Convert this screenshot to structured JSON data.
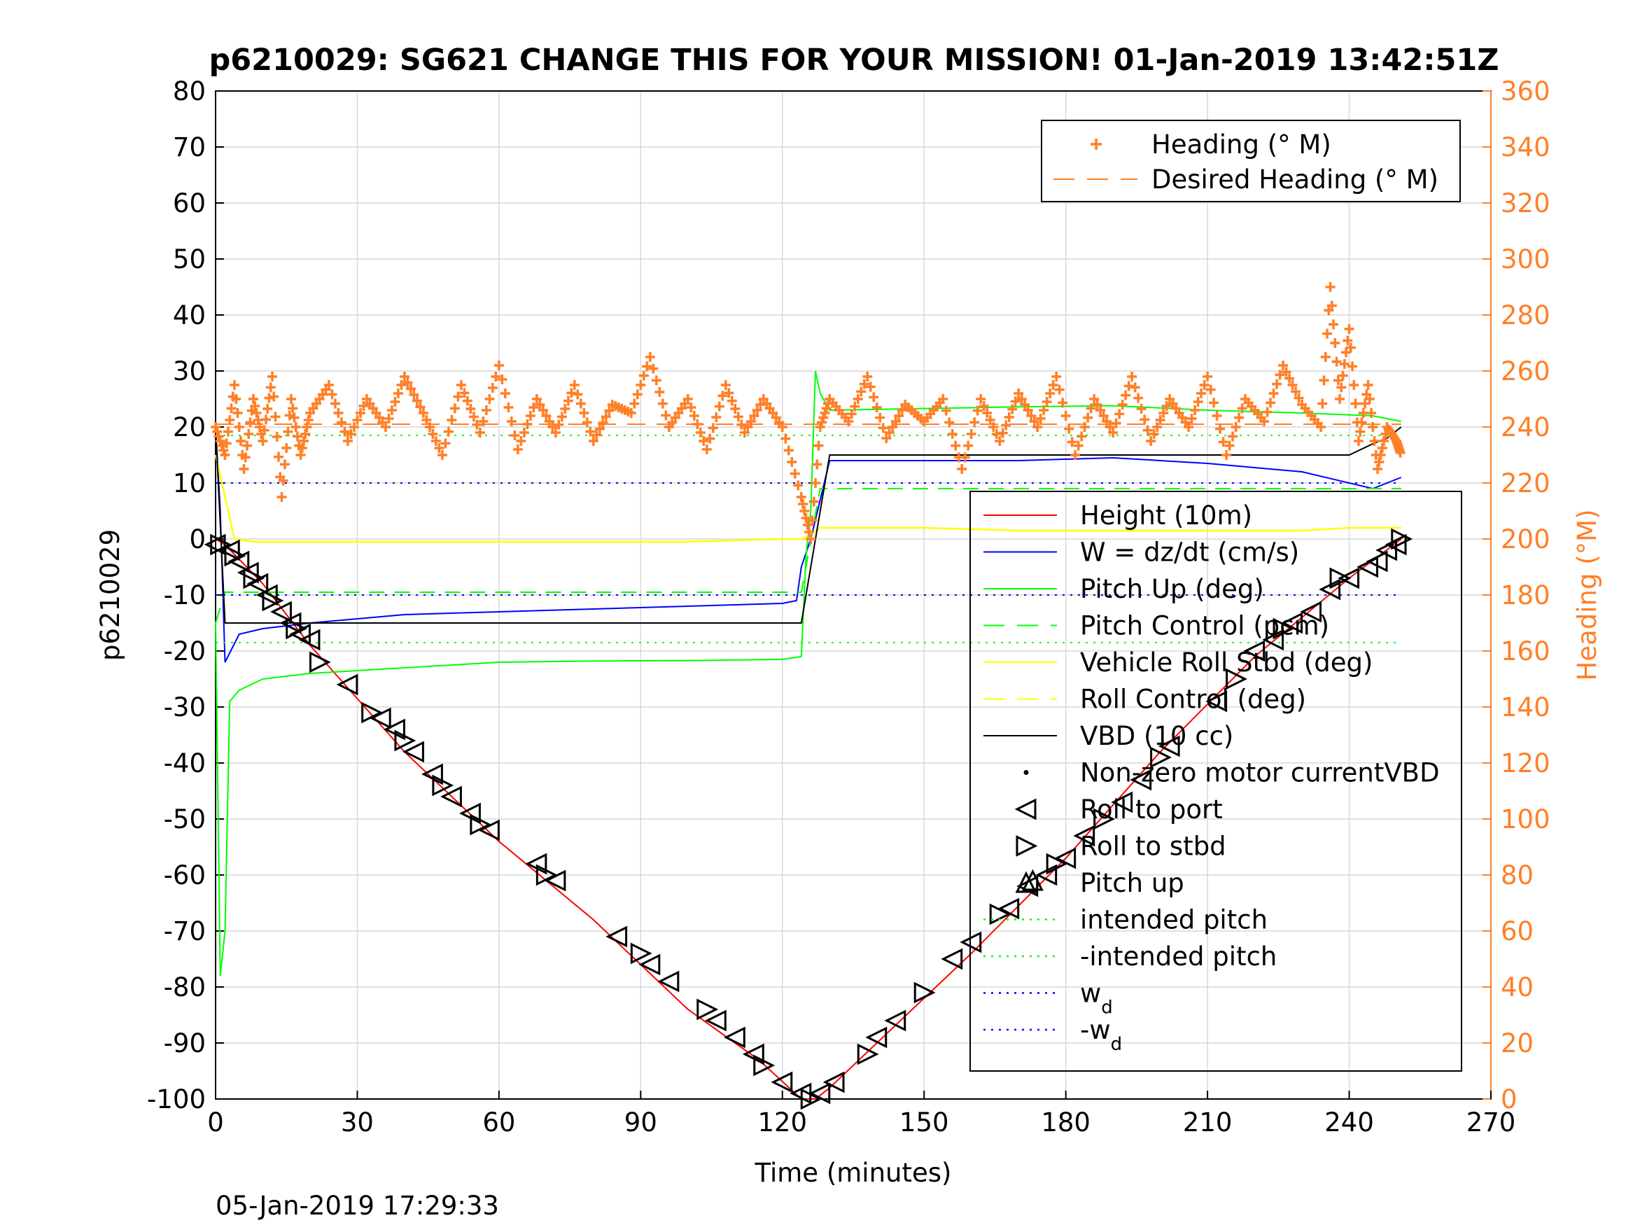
{
  "chart_data": {
    "type": "line",
    "title": "p6210029: SG621 CHANGE THIS FOR YOUR MISSION! 01-Jan-2019 13:42:51Z",
    "xlabel": "Time (minutes)",
    "ylabel_left": "p6210029",
    "ylabel_right": "Heading (°M)",
    "timestamp": "05-Jan-2019 17:29:33",
    "xlim": [
      0,
      270
    ],
    "ylim_left": [
      -100,
      80
    ],
    "ylim_right": [
      0,
      360
    ],
    "xticks": [
      "0",
      "30",
      "60",
      "90",
      "120",
      "150",
      "180",
      "210",
      "240",
      "270"
    ],
    "yticks_left": [
      "80",
      "70",
      "60",
      "50",
      "40",
      "30",
      "20",
      "10",
      "0",
      "-10",
      "-20",
      "-30",
      "-40",
      "-50",
      "-60",
      "-70",
      "-80",
      "-90",
      "-100"
    ],
    "yticks_right": [
      "360",
      "340",
      "320",
      "300",
      "280",
      "260",
      "240",
      "220",
      "200",
      "180",
      "160",
      "140",
      "120",
      "100",
      "80",
      "60",
      "40",
      "20",
      "0"
    ],
    "grid": true,
    "legend_right_axis": {
      "placement": "top-right",
      "entries": [
        {
          "label": "Heading (° M)",
          "color": "#ff7f27",
          "style": "plus"
        },
        {
          "label": "Desired Heading (° M)",
          "color": "#ff7f27",
          "style": "dashed"
        }
      ]
    },
    "legend_left_axis": {
      "placement": "right",
      "entries": [
        {
          "label": "Height (10m)",
          "color": "#ff0000",
          "style": "solid"
        },
        {
          "label": "W = dz/dt (cm/s)",
          "color": "#0000ff",
          "style": "solid"
        },
        {
          "label": "Pitch Up (deg)",
          "color": "#00ff00",
          "style": "solid"
        },
        {
          "label": "Pitch Control (pcm)",
          "color": "#00ff00",
          "style": "dashed"
        },
        {
          "label": "Vehicle Roll Stbd (deg)",
          "color": "#ffff00",
          "style": "solid"
        },
        {
          "label": "Roll Control (deg)",
          "color": "#ffff00",
          "style": "dashed"
        },
        {
          "label": "VBD (10 cc)",
          "color": "#000000",
          "style": "solid"
        },
        {
          "label": "Non-zero motor currentVBD",
          "color": "#000000",
          "style": "dot"
        },
        {
          "label": "Roll to port",
          "color": "#000000",
          "style": "triangle-left"
        },
        {
          "label": "Roll to stbd",
          "color": "#000000",
          "style": "triangle-right"
        },
        {
          "label": "Pitch up",
          "color": "#000000",
          "style": "triangle-up"
        },
        {
          "label": "intended pitch",
          "color": "#00ff00",
          "style": "dotted"
        },
        {
          "label": "-intended pitch",
          "color": "#00ff00",
          "style": "dotted"
        },
        {
          "label": "w",
          "sub": "d",
          "color": "#0000ff",
          "style": "dotted"
        },
        {
          "label": "-w",
          "sub": "d",
          "color": "#0000ff",
          "style": "dotted"
        }
      ]
    },
    "series": [
      {
        "name": "Height (10m)",
        "color": "#ff0000",
        "x": [
          0,
          2,
          10,
          20,
          40,
          60,
          80,
          100,
          115,
          124,
          127,
          130,
          140,
          160,
          180,
          200,
          220,
          240,
          251
        ],
        "y": [
          0,
          -1,
          -8,
          -19,
          -38,
          -54,
          -68,
          -84,
          -93,
          -100,
          -100,
          -98,
          -90,
          -74,
          -57,
          -38,
          -21,
          -7,
          0
        ]
      },
      {
        "name": "W = dz/dt (cm/s)",
        "color": "#0000ff",
        "x": [
          0,
          1,
          2,
          5,
          10,
          20,
          40,
          60,
          80,
          100,
          120,
          123,
          124,
          126,
          128,
          130,
          150,
          170,
          190,
          210,
          230,
          245,
          251
        ],
        "y": [
          20,
          5,
          -22,
          -17,
          -16,
          -15,
          -13.5,
          -13,
          -12.5,
          -12,
          -11.5,
          -11,
          -5,
          0,
          7,
          14,
          14,
          14,
          14.5,
          13.5,
          12,
          9,
          11
        ]
      },
      {
        "name": "Pitch Up (deg)",
        "color": "#00ff00",
        "x": [
          0,
          1,
          2,
          3,
          5,
          10,
          20,
          40,
          60,
          80,
          100,
          120,
          124,
          125,
          126,
          127,
          128,
          130,
          150,
          170,
          190,
          210,
          230,
          245,
          251
        ],
        "y": [
          -15,
          -78,
          -70,
          -29,
          -27,
          -25,
          -24,
          -23,
          -22,
          -21.8,
          -21.7,
          -21.5,
          -21,
          -3,
          5,
          30,
          26,
          23,
          23.3,
          23.6,
          23.8,
          23,
          22.5,
          22,
          21
        ]
      },
      {
        "name": "Pitch Control (pcm)",
        "color": "#00ff00",
        "x": [
          0,
          2,
          124,
          128,
          251
        ],
        "y": [
          -15,
          -9.5,
          -9.5,
          9,
          9
        ]
      },
      {
        "name": "Vehicle Roll Stbd (deg)",
        "color": "#ffff00",
        "x": [
          0,
          4,
          8,
          20,
          40,
          60,
          80,
          100,
          120,
          124,
          128,
          130,
          150,
          170,
          190,
          210,
          230,
          240,
          251
        ],
        "y": [
          15,
          0,
          -0.5,
          -0.5,
          -0.5,
          -0.5,
          -0.5,
          -0.5,
          0,
          0,
          2,
          2,
          2,
          1.5,
          1.5,
          1.5,
          1.5,
          2,
          2
        ]
      },
      {
        "name": "VBD (10 cc)",
        "color": "#000000",
        "x": [
          0,
          2,
          124,
          130,
          190,
          240,
          245,
          248,
          251
        ],
        "y": [
          20,
          -15,
          -15,
          15,
          15,
          15,
          17,
          18,
          20
        ]
      },
      {
        "name": "intended pitch",
        "color": "#00ff00",
        "x": [
          0,
          251
        ],
        "y": [
          18.5,
          18.5
        ]
      },
      {
        "name": "-intended pitch",
        "color": "#00ff00",
        "x": [
          0,
          251
        ],
        "y": [
          -18.5,
          -18.5
        ]
      },
      {
        "name": "w_d",
        "color": "#0000ff",
        "x": [
          0,
          251
        ],
        "y": [
          10,
          10
        ]
      },
      {
        "name": "-w_d",
        "color": "#0000ff",
        "x": [
          0,
          251
        ],
        "y": [
          -10,
          -10
        ]
      },
      {
        "name": "Heading (° M)",
        "axis": "right",
        "color": "#ff7f27",
        "x": [
          0,
          2,
          4,
          6,
          8,
          10,
          12,
          14,
          16,
          18,
          20,
          24,
          28,
          32,
          36,
          40,
          44,
          48,
          52,
          56,
          60,
          64,
          68,
          72,
          76,
          80,
          84,
          88,
          92,
          96,
          100,
          104,
          108,
          112,
          116,
          120,
          124,
          126,
          128,
          130,
          134,
          138,
          142,
          146,
          150,
          154,
          158,
          162,
          166,
          170,
          174,
          178,
          182,
          186,
          190,
          194,
          198,
          202,
          206,
          210,
          214,
          218,
          222,
          226,
          230,
          234,
          236,
          238,
          240,
          242,
          244,
          246,
          248,
          250,
          251
        ],
        "y": [
          240,
          230,
          255,
          225,
          250,
          235,
          258,
          215,
          250,
          230,
          245,
          255,
          235,
          250,
          240,
          258,
          245,
          230,
          255,
          238,
          262,
          232,
          250,
          238,
          255,
          235,
          248,
          245,
          265,
          240,
          250,
          232,
          255,
          238,
          250,
          240,
          215,
          200,
          240,
          250,
          242,
          258,
          236,
          248,
          242,
          250,
          225,
          250,
          235,
          252,
          240,
          258,
          230,
          250,
          238,
          258,
          235,
          250,
          240,
          258,
          230,
          250,
          242,
          262,
          248,
          240,
          290,
          250,
          275,
          235,
          255,
          225,
          240,
          235,
          230
        ]
      },
      {
        "name": "Desired Heading (° M)",
        "axis": "right",
        "color": "#ff7f27",
        "x": [
          0,
          251
        ],
        "y": [
          241,
          241
        ]
      }
    ],
    "markers": {
      "roll_to_port": {
        "x": [
          0,
          3,
          5,
          7,
          9,
          11,
          14,
          16,
          18,
          20,
          28,
          35,
          38,
          42,
          46,
          50,
          54,
          58,
          68,
          72,
          85,
          92,
          96,
          106,
          110,
          114,
          120,
          124,
          128,
          131,
          140,
          144,
          156,
          160,
          168,
          172,
          176,
          180,
          184,
          192,
          196,
          202,
          212,
          220,
          224,
          228,
          232,
          236,
          240,
          244,
          246,
          248,
          250
        ],
        "y": [
          -1,
          -2,
          -4,
          -6,
          -8,
          -10,
          -13,
          -15,
          -17,
          -18,
          -26,
          -32,
          -34,
          -38,
          -42,
          -46,
          -49,
          -52,
          -58,
          -61,
          -71,
          -76,
          -79,
          -86,
          -89,
          -92,
          -97,
          -99,
          -99,
          -97,
          -89,
          -86,
          -75,
          -72,
          -66,
          -62,
          -60,
          -57,
          -53,
          -47,
          -43,
          -37,
          -29,
          -20,
          -18,
          -15,
          -13,
          -9,
          -7,
          -5,
          -4,
          -2,
          -1
        ]
      },
      "roll_to_stbd": {
        "x": [
          1,
          4,
          8,
          12,
          17,
          22,
          33,
          40,
          48,
          56,
          70,
          90,
          104,
          116,
          126,
          138,
          150,
          166,
          178,
          188,
          200,
          216,
          226,
          238,
          251
        ],
        "y": [
          -1,
          -3,
          -7,
          -11,
          -16,
          -22,
          -31,
          -36,
          -44,
          -51,
          -60,
          -74,
          -84,
          -94,
          -100,
          -92,
          -81,
          -67,
          -58,
          -50,
          -39,
          -25,
          -16,
          -7,
          0
        ]
      },
      "pitch_up": {
        "x": [
          173
        ],
        "y": [
          -61
        ]
      }
    }
  }
}
